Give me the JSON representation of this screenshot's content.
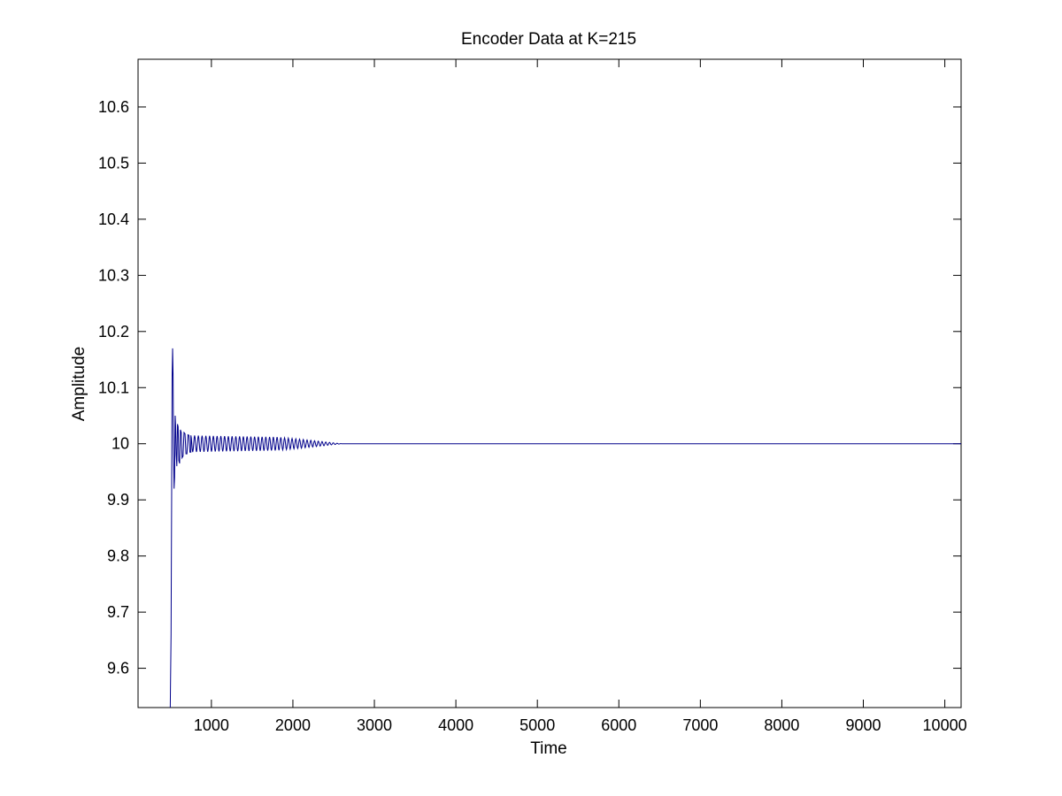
{
  "chart_data": {
    "type": "line",
    "title": "Encoder Data at K=215",
    "xlabel": "Time",
    "ylabel": "Amplitude",
    "xlim": [
      100,
      10200
    ],
    "ylim": [
      9.53,
      10.685
    ],
    "x_ticks": [
      1000,
      2000,
      3000,
      4000,
      5000,
      6000,
      7000,
      8000,
      9000,
      10000
    ],
    "x_tick_labels": [
      "1000",
      "2000",
      "3000",
      "4000",
      "5000",
      "6000",
      "7000",
      "8000",
      "9000",
      "10000"
    ],
    "y_ticks": [
      9.6,
      9.7,
      9.8,
      9.9,
      10,
      10.1,
      10.2,
      10.3,
      10.4,
      10.5,
      10.6
    ],
    "y_tick_labels": [
      "9.6",
      "9.7",
      "9.8",
      "9.9",
      "10",
      "10.1",
      "10.2",
      "10.3",
      "10.4",
      "10.5",
      "10.6"
    ],
    "grid": false,
    "series": [
      {
        "color": "#00008b",
        "points": [
          [
            495,
            9.53
          ],
          [
            505,
            9.66
          ],
          [
            512,
            9.9
          ],
          [
            518,
            10.12
          ],
          [
            524,
            10.17
          ],
          [
            530,
            10.12
          ],
          [
            536,
            9.98
          ],
          [
            542,
            9.92
          ],
          [
            548,
            9.94
          ],
          [
            556,
            10.05
          ],
          [
            562,
            10.03
          ],
          [
            568,
            9.98
          ],
          [
            576,
            9.96
          ],
          [
            584,
            10.035
          ],
          [
            592,
            10.03
          ],
          [
            600,
            9.97
          ],
          [
            610,
            9.965
          ],
          [
            620,
            10.025
          ],
          [
            630,
            10.02
          ],
          [
            640,
            9.975
          ],
          [
            652,
            9.978
          ],
          [
            664,
            10.02
          ],
          [
            676,
            10.018
          ],
          [
            688,
            9.982
          ],
          [
            700,
            9.982
          ],
          [
            712,
            10.016
          ],
          [
            724,
            10.015
          ],
          [
            736,
            9.985
          ],
          [
            748,
            9.985
          ],
          [
            2300,
            10.0
          ],
          [
            2600,
            10.0
          ],
          [
            10200,
            10.0
          ]
        ],
        "oscillation": {
          "x_start": 748,
          "x_end": 2600,
          "period": 46,
          "amplitude_envelope": [
            [
              748,
              0.015
            ],
            [
              1000,
              0.014
            ],
            [
              1400,
              0.013
            ],
            [
              1800,
              0.012
            ],
            [
              2100,
              0.008
            ],
            [
              2350,
              0.004
            ],
            [
              2600,
              0.0
            ]
          ]
        }
      }
    ]
  }
}
